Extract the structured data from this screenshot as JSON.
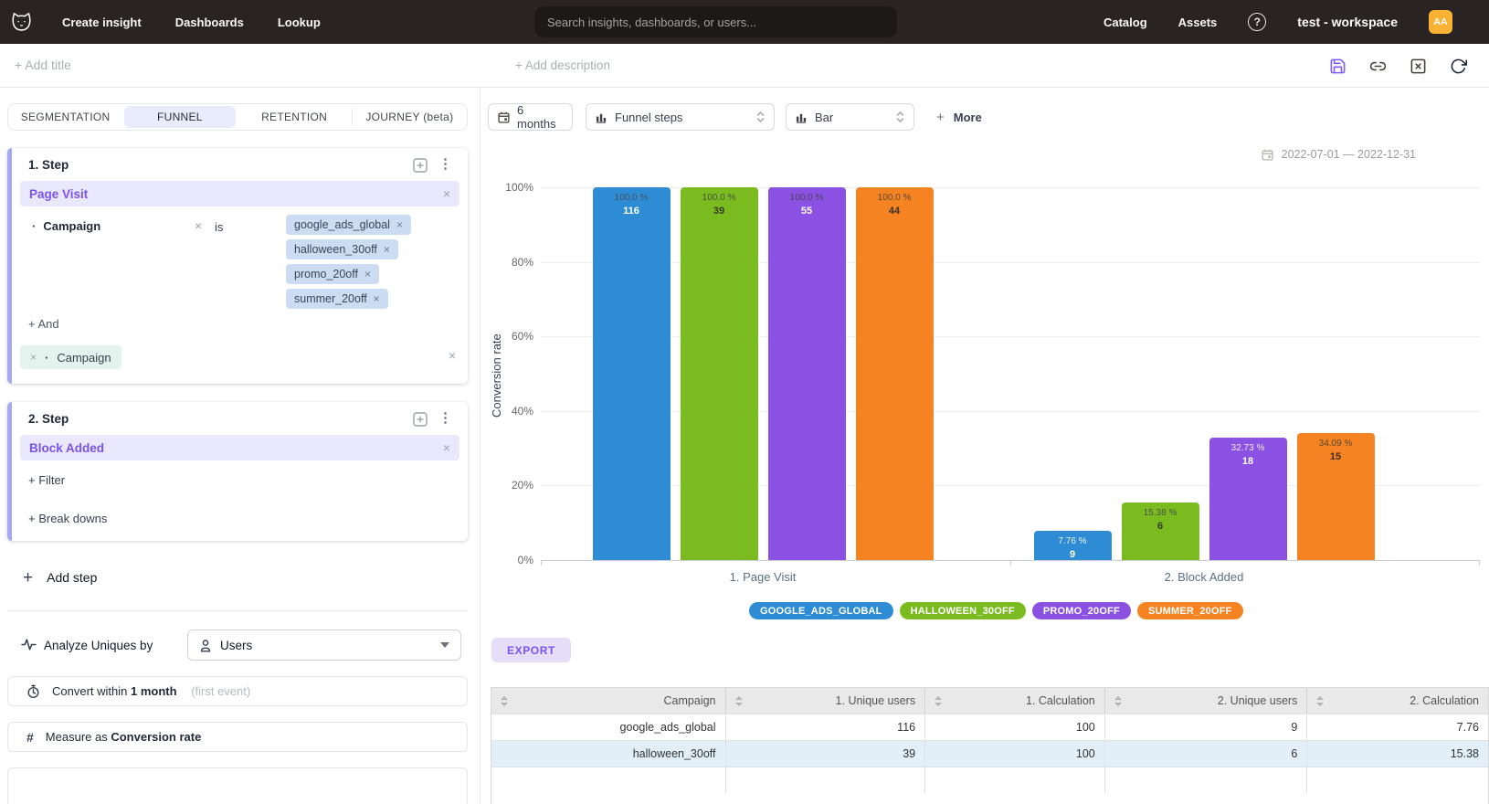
{
  "topnav": {
    "items": [
      "Create insight",
      "Dashboards",
      "Lookup"
    ],
    "search_placeholder": "Search insights, dashboards, or users...",
    "catalog": "Catalog",
    "assets": "Assets",
    "help": "?",
    "workspace": "test - workspace",
    "avatar": "AA"
  },
  "header": {
    "add_title": "+ Add title",
    "add_description": "+ Add description"
  },
  "builder": {
    "tabs": [
      {
        "label": "SEGMENTATION",
        "active": false
      },
      {
        "label": "FUNNEL",
        "active": true
      },
      {
        "label": "RETENTION",
        "active": false
      },
      {
        "label": "JOURNEY (beta)",
        "active": false
      }
    ],
    "step1": {
      "index": "1.",
      "title": "Step",
      "event": "Page Visit",
      "filter_property": "Campaign",
      "operator": "is",
      "values": [
        "google_ads_global",
        "halloween_30off",
        "promo_20off",
        "summer_20off"
      ],
      "and_label": "+ And",
      "pending_property": "Campaign"
    },
    "step2": {
      "index": "2.",
      "title": "Step",
      "event": "Block Added",
      "filter_label": "+ Filter",
      "breakdown_label": "+ Break downs"
    },
    "add_step_label": "Add step",
    "analyze_label": "Analyze Uniques by",
    "analyze_value": "Users",
    "convert_prefix": "Convert within",
    "convert_value": "1 month",
    "convert_hint": "(first event)",
    "measure_prefix": "Measure as",
    "measure_value": "Conversion rate",
    "hash_glyph": "#"
  },
  "toolbar": {
    "range": "6 months",
    "view": "Funnel steps",
    "chart_type": "Bar",
    "more_plus": "+",
    "more_label": "More",
    "date_range": "2022-07-01 — 2022-12-31"
  },
  "chart_data": {
    "type": "bar",
    "title": "",
    "xlabel": "",
    "ylabel": "Conversion rate",
    "ylim": [
      0,
      100
    ],
    "yticks": [
      0,
      20,
      40,
      60,
      80,
      100
    ],
    "ytick_suffix": "%",
    "grid": true,
    "legend_position": "bottom",
    "categories": [
      "1. Page Visit",
      "2. Block Added"
    ],
    "series": [
      {
        "name": "GOOGLE_ADS_GLOBAL",
        "color": "#2e8cd5",
        "values": [
          100.0,
          7.76
        ],
        "counts": [
          116,
          9
        ],
        "pct_labels": [
          "100.0 %",
          "7.76 %"
        ],
        "pct_colors": [
          "#49505c",
          "#eef3f8"
        ],
        "count_color": "#ffffff"
      },
      {
        "name": "HALLOWEEN_30OFF",
        "color": "#7abb20",
        "values": [
          100.0,
          15.38
        ],
        "counts": [
          39,
          6
        ],
        "pct_labels": [
          "100.0 %",
          "15.38 %"
        ],
        "pct_colors": [
          "#48513f",
          "#48513f"
        ],
        "count_color": "#333a28"
      },
      {
        "name": "PROMO_20OFF",
        "color": "#8a51e3",
        "values": [
          100.0,
          32.73
        ],
        "counts": [
          55,
          18
        ],
        "pct_labels": [
          "100.0 %",
          "32.73 %"
        ],
        "pct_colors": [
          "#4a4658",
          "#f0ebfa"
        ],
        "count_color": "#ffffff"
      },
      {
        "name": "SUMMER_20OFF",
        "color": "#f58321",
        "values": [
          100.0,
          34.09
        ],
        "counts": [
          44,
          15
        ],
        "pct_labels": [
          "100.0 %",
          "34.09 %"
        ],
        "pct_colors": [
          "#57493a",
          "#57493a"
        ],
        "count_color": "#3c3126"
      }
    ]
  },
  "export_label": "EXPORT",
  "table": {
    "columns": [
      "Campaign",
      "1. Unique users",
      "1. Calculation",
      "2. Unique users",
      "2. Calculation"
    ],
    "rows": [
      [
        "google_ads_global",
        "116",
        "100",
        "9",
        "7.76"
      ],
      [
        "halloween_30off",
        "39",
        "100",
        "6",
        "15.38"
      ]
    ]
  }
}
